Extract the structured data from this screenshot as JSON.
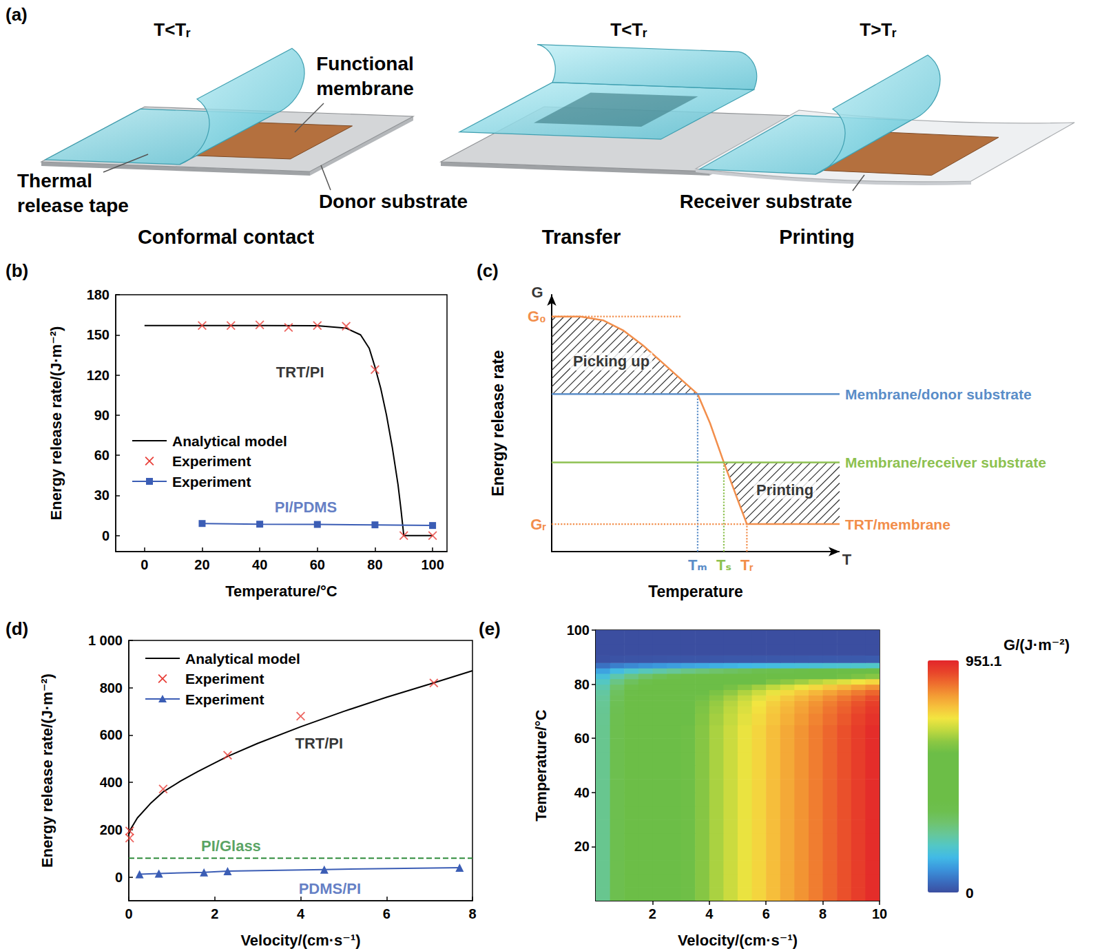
{
  "diagram": {
    "panel": "(a)",
    "steps": [
      {
        "condition": "T<Tᵣ",
        "caption": "Conformal contact",
        "labels": [
          {
            "lines": [
              "Thermal",
              "release tape"
            ]
          },
          {
            "lines": [
              "Functional",
              "membrane"
            ]
          },
          {
            "lines": [
              "Donor substrate"
            ]
          }
        ]
      },
      {
        "condition": "T<Tᵣ",
        "caption": "Transfer",
        "labels": []
      },
      {
        "condition": "T>Tᵣ",
        "caption": "Printing",
        "labels": [
          {
            "lines": [
              "Receiver substrate"
            ]
          }
        ]
      }
    ]
  },
  "chart_data": [
    {
      "panel": "(b)",
      "type": "line",
      "xlabel": "Temperature/°C",
      "ylabel": "Energy release rate/(J·m⁻²)",
      "xlim": [
        -10,
        105
      ],
      "ylim": [
        -12,
        180
      ],
      "xticks": [
        0,
        20,
        40,
        60,
        80,
        100
      ],
      "yticks": [
        0,
        30,
        60,
        90,
        120,
        150,
        180
      ],
      "grid": false,
      "legend": "lower left",
      "series": [
        {
          "name": "Analytical model",
          "color": "#000000",
          "marker": "none",
          "line_style": "solid",
          "values": [
            [
              0,
              157
            ],
            [
              20,
              157
            ],
            [
              40,
              157
            ],
            [
              60,
              156.8
            ],
            [
              70,
              155
            ],
            [
              75,
              150
            ],
            [
              78,
              140
            ],
            [
              80,
              126
            ],
            [
              82,
              110
            ],
            [
              84,
              90
            ],
            [
              86,
              66
            ],
            [
              88,
              38
            ],
            [
              89,
              20
            ],
            [
              90,
              0
            ],
            [
              100,
              0
            ]
          ]
        },
        {
          "name": "Experiment",
          "color": "#e8403a",
          "marker": "x",
          "line_style": "none",
          "values": [
            [
              20,
              157
            ],
            [
              30,
              157
            ],
            [
              40,
              157.5
            ],
            [
              50,
              155.5
            ],
            [
              60,
              157
            ],
            [
              70,
              156.5
            ],
            [
              80,
              124
            ],
            [
              90,
              0
            ],
            [
              100,
              0
            ]
          ]
        },
        {
          "name": "Experiment",
          "color": "#3b5db5",
          "marker": "square",
          "line_style": "solid",
          "values": [
            [
              20,
              9
            ],
            [
              40,
              8.5
            ],
            [
              60,
              8.3
            ],
            [
              80,
              8
            ],
            [
              100,
              7.5
            ]
          ]
        }
      ],
      "annotations": [
        {
          "text": "TRT/PI",
          "x": 54,
          "y": 122,
          "color": "#000000"
        },
        {
          "text": "PI/PDMS",
          "x": 56,
          "y": 21,
          "color": "#3b5db5"
        }
      ]
    },
    {
      "panel": "(c)",
      "type": "schematic",
      "xlabel": "Temperature",
      "ylabel": "Energy release rate",
      "xlim": [
        0,
        10
      ],
      "ylim": [
        0,
        10
      ],
      "xticks": [
        {
          "value": 5.07,
          "label": "Tₘ"
        },
        {
          "value": 5.98,
          "label": "Tₛ"
        },
        {
          "value": 6.78,
          "label": "Tᵣ"
        }
      ],
      "yticks": [
        {
          "value": 9.15,
          "label": "G₀"
        },
        {
          "value": 1.07,
          "label": "Gᵣ"
        }
      ],
      "grid": false,
      "series": [
        {
          "name": "TRT/membrane",
          "color": "#f28e4b",
          "line_style": "solid",
          "values": [
            [
              0,
              9.15
            ],
            [
              1,
              9.15
            ],
            [
              1.8,
              9.0
            ],
            [
              2.5,
              8.6
            ],
            [
              3.2,
              8.0
            ],
            [
              4,
              7.2
            ],
            [
              4.6,
              6.6
            ],
            [
              5.07,
              6.13
            ],
            [
              5.5,
              5.0
            ],
            [
              5.98,
              3.47
            ],
            [
              6.4,
              2.2
            ],
            [
              6.78,
              1.07
            ],
            [
              10,
              1.07
            ]
          ]
        },
        {
          "name": "Membrane/donor substrate",
          "color": "#5a8dc8",
          "line_style": "solid",
          "values": [
            [
              0,
              6.13
            ],
            [
              10,
              6.13
            ]
          ]
        },
        {
          "name": "Membrane/receiver substrate",
          "color": "#8dc150",
          "line_style": "solid",
          "values": [
            [
              0,
              3.47
            ],
            [
              10,
              3.47
            ]
          ]
        }
      ],
      "annotations": [
        {
          "text": "G",
          "x": -0.5,
          "y": 10.1,
          "color": "#000000"
        },
        {
          "text": "T",
          "x": 10.25,
          "y": -0.3,
          "color": "#000000"
        },
        {
          "text": "Picking up",
          "x": 2.07,
          "y": 7.4,
          "color": "#000000"
        },
        {
          "text": "Printing",
          "x": 8.1,
          "y": 2.4,
          "color": "#000000"
        }
      ]
    },
    {
      "panel": "(d)",
      "type": "line",
      "xlabel": "Velocity/(cm·s⁻¹)",
      "ylabel": "Energy release rate/(J·m⁻²)",
      "xlim": [
        0,
        8
      ],
      "ylim": [
        -100,
        1000
      ],
      "xticks": [
        0,
        2,
        4,
        6,
        8
      ],
      "yticks": [
        0,
        200,
        400,
        600,
        800,
        {
          "value": 1000,
          "label": "1 000"
        }
      ],
      "grid": false,
      "legend": "upper left",
      "series": [
        {
          "name": "Analytical model",
          "color": "#000000",
          "marker": "none",
          "line_style": "solid",
          "values": [
            [
              0,
              180
            ],
            [
              0.05,
              205
            ],
            [
              0.2,
              250
            ],
            [
              0.5,
              310
            ],
            [
              0.8,
              360
            ],
            [
              1.2,
              405
            ],
            [
              1.6,
              445
            ],
            [
              2.3,
              510
            ],
            [
              3,
              565
            ],
            [
              4,
              635
            ],
            [
              5,
              700
            ],
            [
              6,
              760
            ],
            [
              7,
              815
            ],
            [
              8,
              872
            ]
          ]
        },
        {
          "name": "Experiment",
          "color": "#e8403a",
          "marker": "x",
          "line_style": "none",
          "values": [
            [
              0.02,
              195
            ],
            [
              0.02,
              165
            ],
            [
              0.8,
              372
            ],
            [
              2.3,
              515
            ],
            [
              4,
              680
            ],
            [
              7.1,
              820
            ]
          ]
        },
        {
          "name": "Experiment",
          "color": "#3b5db5",
          "marker": "triangle",
          "line_style": "solid",
          "values": [
            [
              0.25,
              12
            ],
            [
              0.7,
              15
            ],
            [
              1.75,
              20
            ],
            [
              2.3,
              25
            ],
            [
              4.55,
              32
            ],
            [
              7.7,
              40
            ]
          ]
        },
        {
          "color": "#2e8b3a",
          "marker": "none",
          "line_style": "dashed",
          "values": [
            [
              0,
              80
            ],
            [
              8,
              80
            ]
          ]
        }
      ],
      "annotations": [
        {
          "text": "TRT/PI",
          "x": 4.43,
          "y": 565,
          "color": "#000000"
        },
        {
          "text": "PI/Glass",
          "x": 2.38,
          "y": 130,
          "color": "#2e8b3a"
        },
        {
          "text": "PDMS/PI",
          "x": 4.68,
          "y": -50,
          "color": "#3b5db5"
        }
      ]
    },
    {
      "panel": "(e)",
      "type": "heatmap",
      "xlabel": "Velocity/(cm·s⁻¹)",
      "ylabel": "Temperature/°C",
      "xlim": [
        0,
        10
      ],
      "ylim": [
        0,
        100
      ],
      "xticks": [
        2,
        4,
        6,
        8,
        10
      ],
      "yticks": [
        20,
        40,
        60,
        80,
        100
      ],
      "x": [
        0.25,
        0.75,
        1.25,
        1.75,
        2.25,
        2.75,
        3.25,
        3.75,
        4.25,
        4.75,
        5.25,
        5.75,
        6.25,
        6.75,
        7.25,
        7.75,
        8.25,
        8.75,
        9.25,
        9.75
      ],
      "y": [
        2.5,
        7.5,
        12.5,
        17.5,
        22.5,
        27.5,
        32.5,
        37.5,
        42.5,
        47.5,
        52.5,
        57.5,
        62.5,
        67.5,
        71,
        73,
        75,
        77,
        79,
        81,
        83,
        85,
        87,
        89,
        92.5,
        97.5
      ],
      "values": [
        [
          250,
          335,
          400,
          450,
          495,
          535,
          575,
          610,
          645,
          675,
          705,
          735,
          765,
          790,
          815,
          840,
          865,
          890,
          915,
          940
        ],
        [
          250,
          335,
          400,
          450,
          495,
          535,
          575,
          610,
          645,
          675,
          705,
          735,
          765,
          790,
          815,
          840,
          865,
          890,
          915,
          940
        ],
        [
          250,
          335,
          400,
          450,
          495,
          535,
          575,
          610,
          645,
          675,
          705,
          735,
          765,
          790,
          815,
          840,
          865,
          890,
          915,
          940
        ],
        [
          250,
          335,
          400,
          450,
          495,
          535,
          575,
          610,
          645,
          675,
          705,
          735,
          765,
          790,
          815,
          840,
          865,
          890,
          915,
          940
        ],
        [
          250,
          335,
          400,
          450,
          495,
          535,
          575,
          610,
          645,
          675,
          705,
          735,
          765,
          790,
          815,
          840,
          865,
          890,
          915,
          940
        ],
        [
          250,
          335,
          400,
          450,
          495,
          535,
          575,
          610,
          645,
          675,
          705,
          735,
          765,
          790,
          815,
          840,
          865,
          890,
          915,
          940
        ],
        [
          250,
          335,
          400,
          450,
          495,
          535,
          575,
          610,
          645,
          675,
          705,
          735,
          765,
          790,
          815,
          840,
          865,
          890,
          915,
          940
        ],
        [
          250,
          335,
          400,
          450,
          495,
          535,
          575,
          610,
          645,
          675,
          705,
          735,
          765,
          790,
          815,
          840,
          865,
          890,
          915,
          940
        ],
        [
          250,
          335,
          400,
          450,
          495,
          535,
          575,
          610,
          645,
          675,
          705,
          735,
          765,
          790,
          815,
          840,
          865,
          890,
          915,
          940
        ],
        [
          250,
          335,
          400,
          450,
          495,
          535,
          575,
          610,
          645,
          675,
          705,
          735,
          765,
          790,
          815,
          840,
          865,
          890,
          915,
          940
        ],
        [
          250,
          335,
          400,
          450,
          495,
          535,
          575,
          610,
          645,
          675,
          705,
          735,
          765,
          790,
          815,
          840,
          865,
          890,
          915,
          940
        ],
        [
          250,
          335,
          400,
          450,
          495,
          535,
          575,
          610,
          645,
          675,
          705,
          735,
          765,
          790,
          815,
          840,
          865,
          890,
          915,
          940
        ],
        [
          250,
          335,
          400,
          450,
          495,
          535,
          575,
          610,
          645,
          675,
          705,
          735,
          765,
          790,
          815,
          840,
          865,
          890,
          915,
          940
        ],
        [
          248,
          332,
          396,
          446,
          490,
          530,
          569,
          604,
          639,
          668,
          698,
          728,
          757,
          782,
          807,
          832,
          856,
          881,
          906,
          931
        ],
        [
          245,
          328,
          392,
          441,
          485,
          524,
          564,
          598,
          632,
          662,
          691,
          720,
          750,
          774,
          799,
          823,
          848,
          872,
          897,
          921
        ],
        [
          243,
          325,
          388,
          437,
          480,
          519,
          558,
          592,
          626,
          655,
          684,
          713,
          742,
          766,
          791,
          815,
          839,
          863,
          888,
          912
        ],
        [
          238,
          318,
          380,
          428,
          470,
          508,
          546,
          580,
          613,
          641,
          670,
          698,
          727,
          751,
          774,
          798,
          822,
          846,
          869,
          893
        ],
        [
          230,
          308,
          368,
          414,
          455,
          492,
          529,
          561,
          593,
          621,
          649,
          676,
          704,
          727,
          750,
          773,
          796,
          819,
          842,
          865
        ],
        [
          218,
          291,
          348,
          392,
          431,
          465,
          500,
          531,
          561,
          587,
          613,
          639,
          666,
          687,
          709,
          731,
          753,
          774,
          796,
          818
        ],
        [
          195,
          261,
          312,
          351,
          386,
          417,
          449,
          476,
          503,
          527,
          550,
          573,
          597,
          616,
          636,
          655,
          675,
          694,
          714,
          733
        ],
        [
          163,
          218,
          260,
          293,
          322,
          348,
          374,
          397,
          419,
          439,
          458,
          478,
          497,
          514,
          530,
          546,
          562,
          579,
          595,
          611
        ],
        [
          113,
          151,
          180,
          203,
          223,
          241,
          259,
          275,
          290,
          304,
          317,
          331,
          344,
          356,
          367,
          378,
          389,
          401,
          412,
          423
        ],
        [
          50,
          67,
          80,
          90,
          99,
          107,
          115,
          122,
          129,
          135,
          141,
          147,
          153,
          158,
          163,
          168,
          173,
          178,
          183,
          188
        ],
        [
          5,
          7,
          8,
          9,
          10,
          11,
          12,
          12,
          13,
          14,
          14,
          15,
          15,
          16,
          16,
          17,
          17,
          18,
          18,
          19
        ],
        [
          0,
          0,
          0,
          0,
          0,
          0,
          0,
          0,
          0,
          0,
          0,
          0,
          0,
          0,
          0,
          0,
          0,
          0,
          0,
          0
        ],
        [
          0,
          0,
          0,
          0,
          0,
          0,
          0,
          0,
          0,
          0,
          0,
          0,
          0,
          0,
          0,
          0,
          0,
          0,
          0,
          0
        ]
      ],
      "colorbar": {
        "title": "G/(J·m⁻²)",
        "range": [
          0,
          951.1
        ],
        "ticks": [
          0,
          951.1
        ]
      }
    }
  ]
}
